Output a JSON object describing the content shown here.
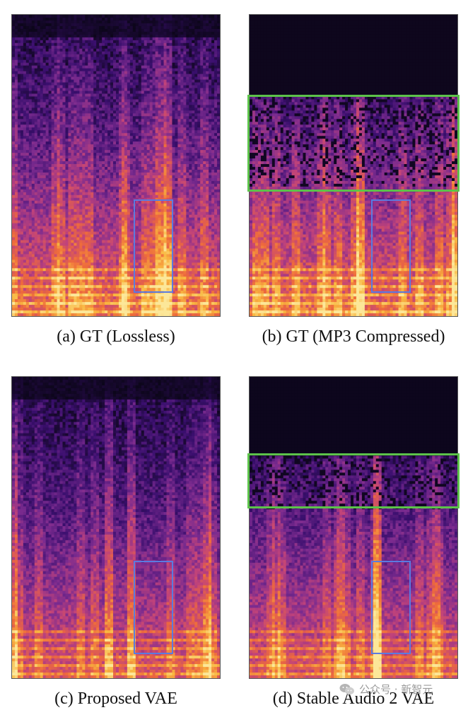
{
  "figure": {
    "panels": [
      {
        "id": "a",
        "caption": "(a) GT (Lossless)",
        "cutoff": false,
        "highlight_high_freq": false
      },
      {
        "id": "b",
        "caption": "(b) GT (MP3 Compressed)",
        "cutoff": true,
        "highlight_high_freq": true
      },
      {
        "id": "c",
        "caption": "(c) Proposed VAE",
        "cutoff": false,
        "highlight_high_freq": false
      },
      {
        "id": "d",
        "caption": "(d) Stable Audio 2 VAE",
        "cutoff": true,
        "highlight_high_freq": true
      }
    ],
    "colors": {
      "highlight_blue": "#5b7be0",
      "highlight_green": "#5cc24a",
      "colormap": [
        "#0b0618",
        "#3a0f6e",
        "#7b2b8f",
        "#c1437a",
        "#ee6a3c",
        "#f9b740",
        "#fce79a"
      ]
    }
  },
  "watermark": {
    "text": "公众号 · 新智元",
    "icon": "wechat-icon"
  }
}
